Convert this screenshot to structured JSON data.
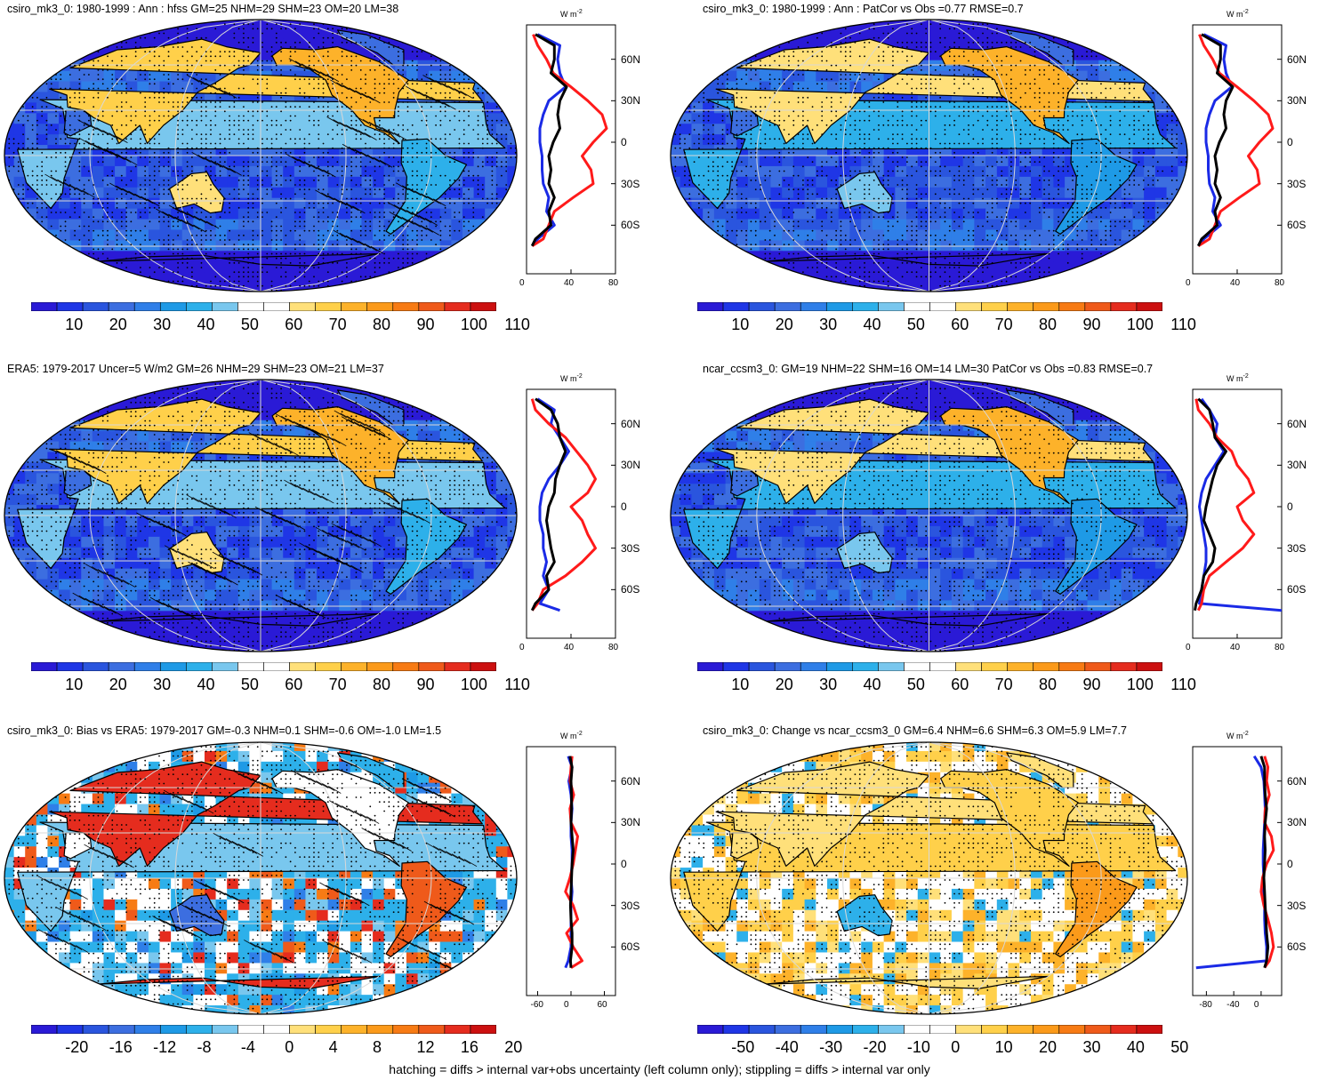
{
  "footnote": "hatching = diffs > internal var+obs uncertainty (left column only); stippling = diffs > internal var only",
  "colors": {
    "scale_abs": [
      "#2a1ad6",
      "#1f36e6",
      "#2a55de",
      "#3c6ee0",
      "#2f7fe8",
      "#1e9ae6",
      "#2db0ea",
      "#79c7ee",
      "#ffffff",
      "#ffffff",
      "#ffe07a",
      "#ffd04a",
      "#fdb22a",
      "#fb9a1a",
      "#f77b14",
      "#ef5a1a",
      "#e52c1e",
      "#cc1010"
    ],
    "scale_div": [
      "#2a1ad6",
      "#1f36e6",
      "#2a55de",
      "#3c6ee0",
      "#2f7fe8",
      "#1e9ae6",
      "#2db0ea",
      "#79c7ee",
      "#ffffff",
      "#ffffff",
      "#ffe07a",
      "#ffd04a",
      "#fdb22a",
      "#fb9a1a",
      "#f77b14",
      "#ef5a1a",
      "#e52c1e",
      "#cc1010"
    ],
    "model_line": "#000000",
    "land_line": "#ff1a1a",
    "ocean_line": "#1a2ae6"
  },
  "chart_data": [
    {
      "type": "heatmap",
      "title": "csiro_mk3_0: 1980-1999 : Ann : hfss GM=25 NHM=29 SHM=23 OM=20 LM=38",
      "map_style": "abs_hatch",
      "colorbar_ticks": [
        "10",
        "20",
        "30",
        "40",
        "50",
        "60",
        "70",
        "80",
        "90",
        "100",
        "110"
      ],
      "profile": {
        "unit": "W m",
        "unit_sup": "-2",
        "x_ticks": [
          "0",
          "40",
          "80"
        ],
        "x_range": [
          0,
          80
        ],
        "lat_ticks": [
          "60N",
          "30N",
          "0",
          "30S",
          "60S"
        ],
        "lat": [
          78,
          70,
          60,
          50,
          40,
          30,
          20,
          10,
          0,
          -10,
          -20,
          -30,
          -40,
          -50,
          -60,
          -70,
          -75
        ],
        "model": [
          8,
          25,
          25,
          22,
          36,
          30,
          28,
          30,
          24,
          20,
          22,
          20,
          25,
          20,
          22,
          8,
          5
        ],
        "land": [
          6,
          10,
          18,
          24,
          40,
          55,
          68,
          72,
          60,
          50,
          58,
          60,
          42,
          25,
          20,
          15,
          5
        ],
        "ocean": [
          10,
          30,
          28,
          30,
          35,
          20,
          15,
          12,
          12,
          14,
          14,
          15,
          20,
          18,
          25,
          10,
          5
        ]
      }
    },
    {
      "type": "heatmap",
      "title": "csiro_mk3_0: 1980-1999 : Ann : PatCor vs Obs =0.77 RMSE=0.7",
      "map_style": "abs_stipple",
      "colorbar_ticks": [
        "10",
        "20",
        "30",
        "40",
        "50",
        "60",
        "70",
        "80",
        "90",
        "100",
        "110"
      ],
      "profile": {
        "unit": "W m",
        "unit_sup": "-2",
        "x_ticks": [
          "0",
          "40",
          "80"
        ],
        "x_range": [
          0,
          80
        ],
        "lat_ticks": [
          "60N",
          "30N",
          "0",
          "30S",
          "60S"
        ],
        "lat": [
          78,
          70,
          60,
          50,
          40,
          30,
          20,
          10,
          0,
          -10,
          -20,
          -30,
          -40,
          -50,
          -60,
          -70,
          -75
        ],
        "model": [
          8,
          25,
          25,
          22,
          36,
          30,
          28,
          30,
          24,
          20,
          22,
          20,
          25,
          20,
          22,
          8,
          5
        ],
        "land": [
          6,
          10,
          18,
          24,
          40,
          55,
          68,
          72,
          60,
          50,
          58,
          60,
          42,
          25,
          20,
          15,
          5
        ],
        "ocean": [
          10,
          30,
          28,
          30,
          35,
          20,
          15,
          12,
          12,
          14,
          14,
          15,
          20,
          18,
          25,
          10,
          5
        ]
      }
    },
    {
      "type": "heatmap",
      "title": "ERA5: 1979-2017 Uncer=5 W/m2 GM=26 NHM=29 SHM=23 OM=21 LM=37",
      "map_style": "abs_hatch",
      "colorbar_ticks": [
        "10",
        "20",
        "30",
        "40",
        "50",
        "60",
        "70",
        "80",
        "90",
        "100",
        "110"
      ],
      "profile": {
        "unit": "W m",
        "unit_sup": "-2",
        "x_ticks": [
          "0",
          "40",
          "80"
        ],
        "x_range": [
          0,
          80
        ],
        "lat_ticks": [
          "60N",
          "30N",
          "0",
          "30S",
          "60S"
        ],
        "lat": [
          78,
          70,
          60,
          50,
          40,
          30,
          20,
          10,
          0,
          -10,
          -20,
          -30,
          -40,
          -50,
          -60,
          -70,
          -75
        ],
        "model": [
          8,
          22,
          28,
          30,
          35,
          30,
          26,
          25,
          20,
          18,
          20,
          22,
          25,
          18,
          20,
          8,
          5
        ],
        "land": [
          5,
          8,
          20,
          35,
          45,
          55,
          62,
          55,
          40,
          50,
          55,
          62,
          50,
          35,
          15,
          10,
          5
        ],
        "ocean": [
          10,
          25,
          22,
          30,
          38,
          30,
          20,
          14,
          12,
          12,
          15,
          15,
          18,
          15,
          20,
          12,
          30
        ]
      }
    },
    {
      "type": "heatmap",
      "title": "ncar_ccsm3_0: GM=19 NHM=22 SHM=16 OM=14 LM=30 PatCor vs Obs =0.83 RMSE=0.7",
      "map_style": "abs_stipple",
      "colorbar_ticks": [
        "10",
        "20",
        "30",
        "40",
        "50",
        "60",
        "70",
        "80",
        "90",
        "100",
        "110"
      ],
      "profile": {
        "unit": "W m",
        "unit_sup": "-2",
        "x_ticks": [
          "0",
          "40",
          "80"
        ],
        "x_range": [
          0,
          80
        ],
        "lat_ticks": [
          "60N",
          "30N",
          "0",
          "30S",
          "60S"
        ],
        "lat": [
          78,
          70,
          60,
          50,
          40,
          30,
          20,
          10,
          0,
          -10,
          -20,
          -30,
          -40,
          -50,
          -60,
          -70,
          -75
        ],
        "model": [
          5,
          15,
          18,
          20,
          30,
          22,
          18,
          15,
          12,
          10,
          15,
          20,
          18,
          10,
          8,
          3,
          2
        ],
        "land": [
          3,
          5,
          15,
          22,
          35,
          40,
          50,
          55,
          40,
          45,
          55,
          45,
          30,
          15,
          10,
          8,
          5
        ],
        "ocean": [
          8,
          15,
          22,
          20,
          28,
          20,
          12,
          8,
          6,
          8,
          10,
          12,
          12,
          10,
          8,
          6,
          80
        ]
      }
    },
    {
      "type": "heatmap",
      "title": "csiro_mk3_0: Bias vs ERA5: 1979-2017 GM=-0.3 NHM=0.1 SHM=-0.6 OM=-1.0 LM=1.5",
      "map_style": "div_bias",
      "colorbar_ticks": [
        "-20",
        "-16",
        "-12",
        "-8",
        "-4",
        "0",
        "4",
        "8",
        "12",
        "16",
        "20"
      ],
      "profile": {
        "unit": "W m",
        "unit_sup": "-2",
        "x_ticks": [
          "-60",
          "0",
          "60"
        ],
        "x_range": [
          -80,
          80
        ],
        "lat_ticks": [
          "60N",
          "30N",
          "0",
          "30S",
          "60S"
        ],
        "lat": [
          78,
          70,
          60,
          50,
          40,
          30,
          20,
          10,
          0,
          -10,
          -20,
          -30,
          -40,
          -50,
          -60,
          -70,
          -75
        ],
        "model": [
          -2,
          2,
          0,
          1,
          1,
          0,
          2,
          4,
          2,
          1,
          0,
          -1,
          0,
          2,
          2,
          -1,
          0
        ],
        "land": [
          2,
          0,
          -2,
          5,
          -2,
          0,
          12,
          8,
          4,
          -2,
          -10,
          4,
          12,
          -8,
          4,
          20,
          0
        ],
        "ocean": [
          -5,
          2,
          -4,
          0,
          2,
          0,
          0,
          2,
          2,
          0,
          2,
          0,
          0,
          0,
          0,
          -5,
          -10
        ]
      }
    },
    {
      "type": "heatmap",
      "title": "csiro_mk3_0: Change vs ncar_ccsm3_0 GM=6.4 NHM=6.6 SHM=6.3 OM=5.9 LM=7.7",
      "map_style": "div_change",
      "colorbar_ticks": [
        "-50",
        "-40",
        "-30",
        "-20",
        "-10",
        "0",
        "10",
        "20",
        "30",
        "40",
        "50"
      ],
      "profile": {
        "unit": "W m",
        "unit_sup": "-2",
        "x_ticks": [
          "-80",
          "-40",
          "0"
        ],
        "x_range": [
          -100,
          30
        ],
        "lat_ticks": [
          "60N",
          "30N",
          "0",
          "30S",
          "60S"
        ],
        "lat": [
          78,
          70,
          60,
          50,
          40,
          30,
          20,
          10,
          0,
          -10,
          -20,
          -30,
          -40,
          -50,
          -60,
          -70,
          -75
        ],
        "model": [
          0,
          5,
          5,
          6,
          8,
          6,
          5,
          6,
          5,
          4,
          5,
          6,
          7,
          8,
          10,
          8,
          5
        ],
        "land": [
          5,
          10,
          8,
          12,
          6,
          5,
          15,
          18,
          8,
          2,
          0,
          4,
          10,
          15,
          18,
          12,
          5
        ],
        "ocean": [
          -10,
          0,
          4,
          5,
          6,
          5,
          4,
          3,
          3,
          4,
          4,
          5,
          5,
          6,
          8,
          8,
          -95
        ]
      }
    }
  ]
}
